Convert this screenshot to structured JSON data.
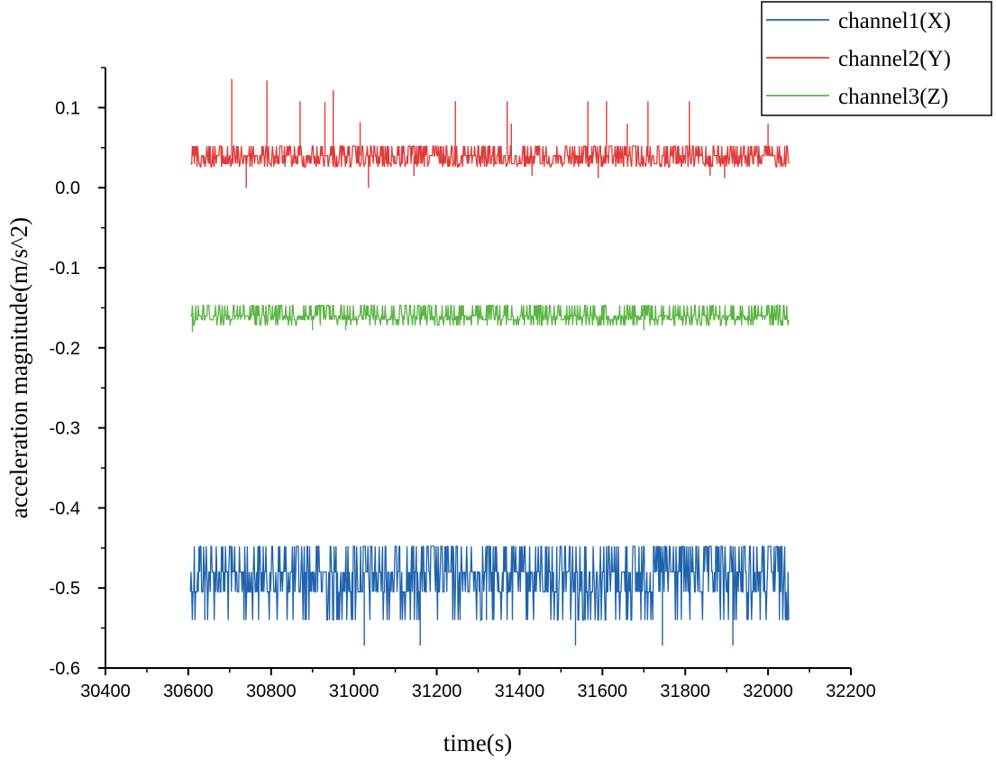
{
  "chart_data": {
    "type": "line",
    "title": "",
    "xlabel": "time(s)",
    "ylabel": "acceleration magnitude(m/s^2)",
    "xlim": [
      30400,
      32200
    ],
    "ylim": [
      -0.6,
      0.15
    ],
    "x_ticks": [
      30400,
      30600,
      30800,
      31000,
      31200,
      31400,
      31600,
      31800,
      32000,
      32200
    ],
    "x_tick_labels": [
      "30400",
      "30600",
      "30800",
      "31000",
      "31200",
      "31400",
      "31600",
      "31800",
      "32000",
      "32200"
    ],
    "y_ticks": [
      0.1,
      0.0,
      -0.1,
      -0.2,
      -0.3,
      -0.4,
      -0.5,
      -0.6
    ],
    "y_tick_labels": [
      "0.1",
      "0.0",
      "-0.1",
      "-0.2",
      "-0.3",
      "-0.4",
      "-0.5",
      "-0.6"
    ],
    "grid": false,
    "legend_position": "top-right",
    "x_range": [
      30605,
      32050
    ],
    "series": [
      {
        "name": "channel1(X)",
        "color": "#1f63ad",
        "baseline": -0.48,
        "low": -0.505,
        "noise_top": -0.448,
        "noise_bottom": -0.54,
        "spikes_up": [],
        "spikes_down": [
          [
            31025,
            -0.572
          ],
          [
            31160,
            -0.572
          ],
          [
            31535,
            -0.572
          ],
          [
            31745,
            -0.572
          ],
          [
            31915,
            -0.572
          ],
          [
            30640,
            -0.54
          ],
          [
            31320,
            -0.54
          ]
        ]
      },
      {
        "name": "channel2(Y)",
        "color": "#e03a3a",
        "baseline": 0.04,
        "low": 0.03,
        "noise_top": 0.052,
        "noise_bottom": 0.026,
        "spikes_up": [
          [
            30705,
            0.136
          ],
          [
            30790,
            0.134
          ],
          [
            30870,
            0.108
          ],
          [
            30930,
            0.107
          ],
          [
            30950,
            0.122
          ],
          [
            31015,
            0.082
          ],
          [
            31245,
            0.108
          ],
          [
            31370,
            0.108
          ],
          [
            31380,
            0.08
          ],
          [
            31565,
            0.108
          ],
          [
            31610,
            0.108
          ],
          [
            31660,
            0.08
          ],
          [
            31710,
            0.108
          ],
          [
            31810,
            0.108
          ],
          [
            32000,
            0.08
          ]
        ],
        "spikes_down": [
          [
            30740,
            0.0
          ],
          [
            31035,
            0.0
          ],
          [
            31145,
            0.015
          ],
          [
            31430,
            0.015
          ],
          [
            31590,
            0.012
          ],
          [
            31895,
            0.012
          ],
          [
            31860,
            0.015
          ]
        ]
      },
      {
        "name": "channel3(Z)",
        "color": "#5bb544",
        "baseline": -0.16,
        "low": -0.165,
        "noise_top": -0.147,
        "noise_bottom": -0.172,
        "spikes_up": [],
        "spikes_down": [
          [
            30610,
            -0.18
          ],
          [
            30900,
            -0.178
          ],
          [
            30980,
            -0.178
          ],
          [
            31700,
            -0.178
          ]
        ]
      }
    ]
  }
}
